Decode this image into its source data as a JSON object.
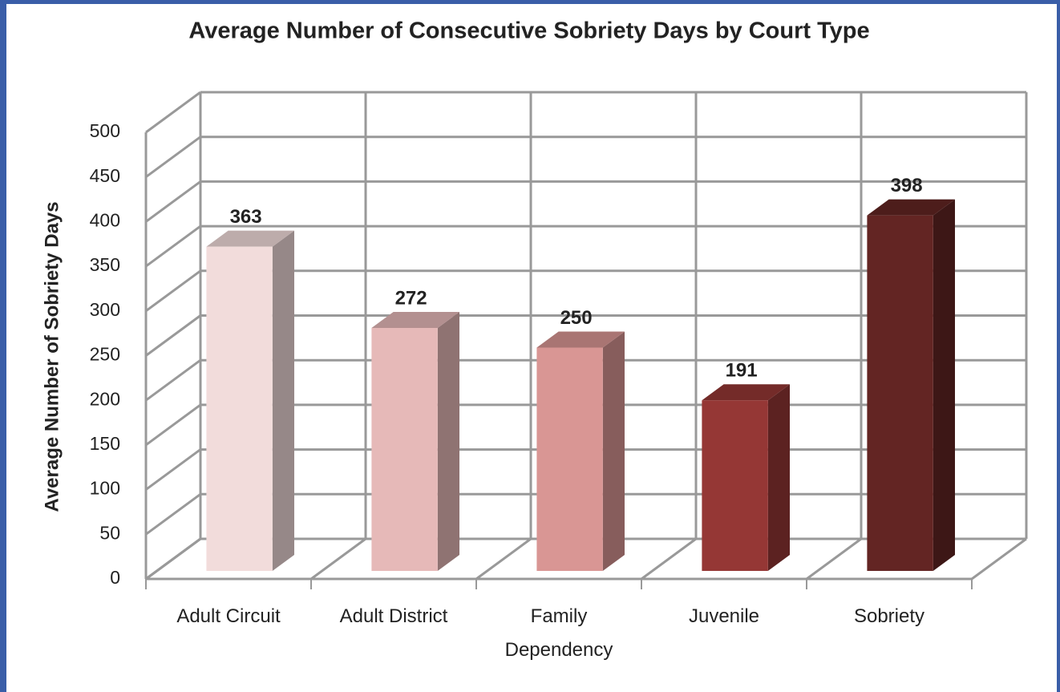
{
  "chart_data": {
    "type": "bar3d",
    "title": "Average Number of Consecutive Sobriety Days by Court Type",
    "y_label": "Average Number of Sobriety Days",
    "categories": [
      "Adult Circuit",
      "Adult District",
      "Family Dependency",
      "Juvenile",
      "Sobriety"
    ],
    "values": [
      363,
      272,
      250,
      191,
      398
    ],
    "colors": [
      "#f2dcdb",
      "#e6b9b8",
      "#d99694",
      "#953735",
      "#632523"
    ],
    "ylim": [
      0,
      500
    ],
    "yticks": [
      0,
      50,
      100,
      150,
      200,
      250,
      300,
      350,
      400,
      450,
      500
    ],
    "grid": true
  }
}
